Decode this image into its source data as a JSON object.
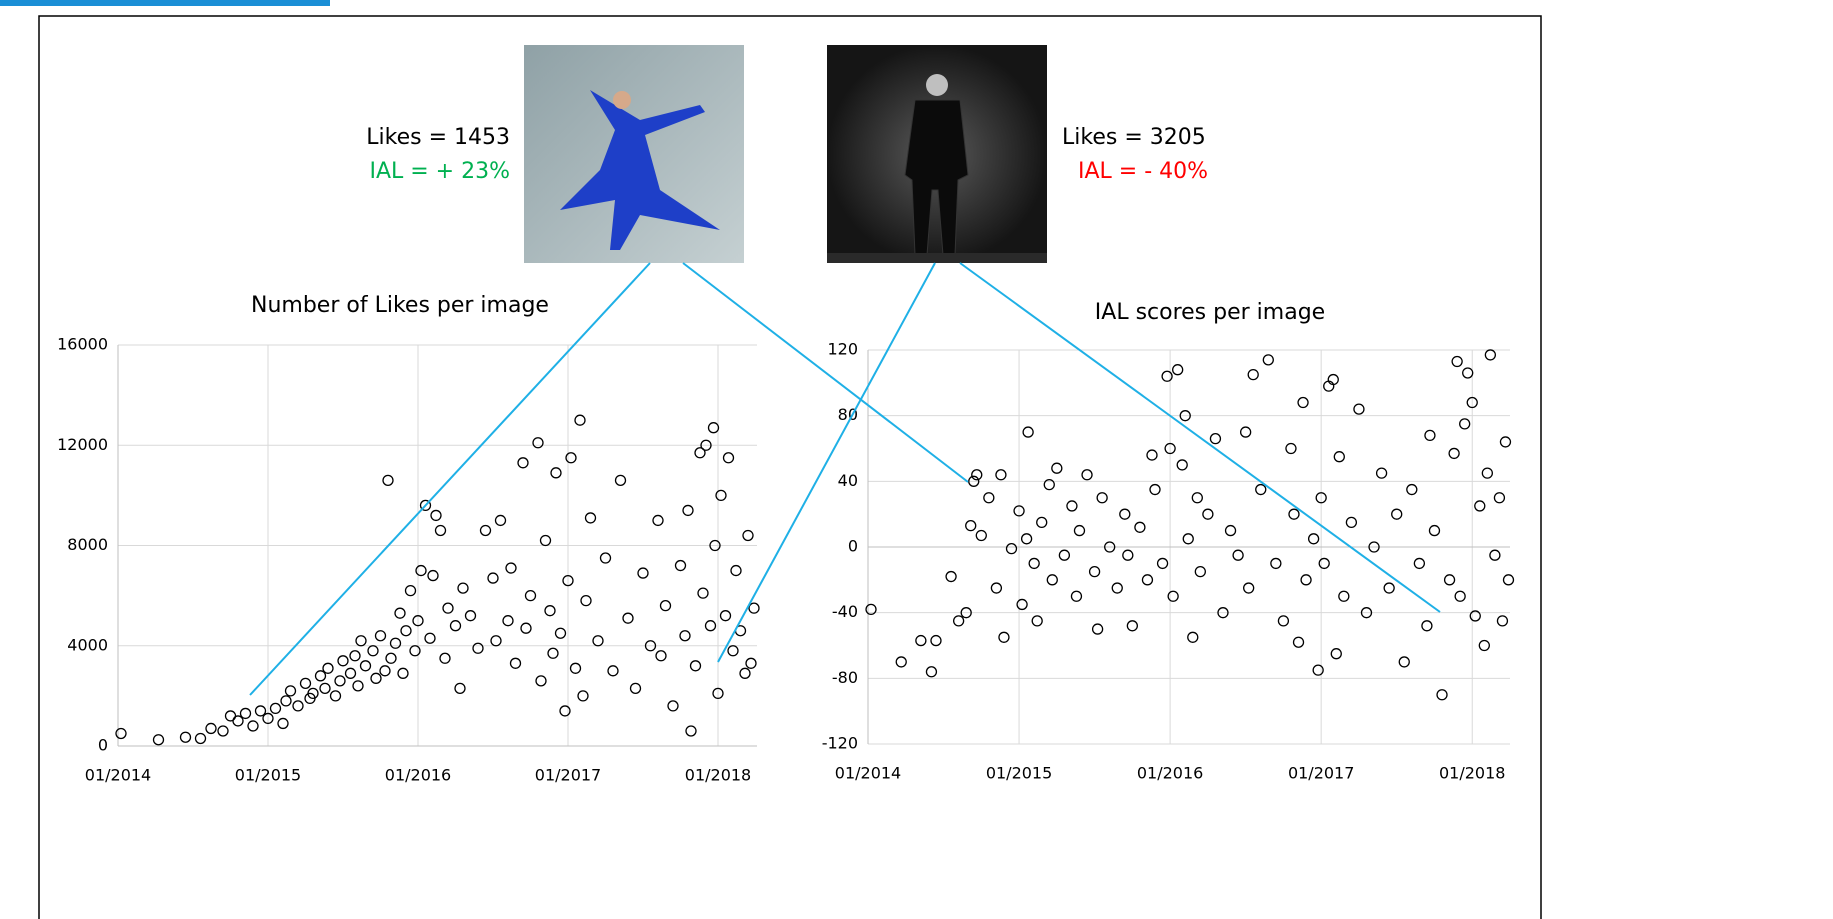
{
  "annotations": [
    "Likes = 1453",
    "IAL = + 23%",
    "Likes = 3205",
    "IAL = - 40%"
  ],
  "chart_data": [
    {
      "type": "scatter",
      "title": "Number of Likes per image",
      "x": [
        2014.02,
        2014.27,
        2014.45,
        2014.55,
        2014.62,
        2014.7,
        2014.75,
        2014.8,
        2014.85,
        2014.9,
        2014.95,
        2015.0,
        2015.05,
        2015.1,
        2015.12,
        2015.15,
        2015.2,
        2015.25,
        2015.28,
        2015.3,
        2015.35,
        2015.38,
        2015.4,
        2015.45,
        2015.48,
        2015.5,
        2015.55,
        2015.58,
        2015.6,
        2015.62,
        2015.65,
        2015.7,
        2015.72,
        2015.75,
        2015.78,
        2015.8,
        2015.82,
        2015.85,
        2015.88,
        2015.9,
        2015.92,
        2015.95,
        2015.98,
        2016.0,
        2016.02,
        2016.05,
        2016.08,
        2016.1,
        2016.12,
        2016.15,
        2016.18,
        2016.2,
        2016.25,
        2016.28,
        2016.3,
        2016.35,
        2016.4,
        2016.45,
        2016.5,
        2016.52,
        2016.55,
        2016.6,
        2016.62,
        2016.65,
        2016.7,
        2016.72,
        2016.75,
        2016.8,
        2016.82,
        2016.85,
        2016.88,
        2016.9,
        2016.92,
        2016.95,
        2016.98,
        2017.0,
        2017.02,
        2017.05,
        2017.08,
        2017.1,
        2017.12,
        2017.15,
        2017.2,
        2017.25,
        2017.3,
        2017.35,
        2017.4,
        2017.45,
        2017.5,
        2017.55,
        2017.6,
        2017.62,
        2017.65,
        2017.7,
        2017.75,
        2017.78,
        2017.8,
        2017.82,
        2017.85,
        2017.88,
        2017.9,
        2017.92,
        2017.95,
        2017.97,
        2017.98,
        2018.0,
        2018.02,
        2018.05,
        2018.07,
        2018.1,
        2018.12,
        2018.15,
        2018.18,
        2018.2,
        2018.22,
        2018.24
      ],
      "values": [
        500,
        250,
        350,
        300,
        700,
        600,
        1200,
        1000,
        1300,
        800,
        1400,
        1100,
        1500,
        900,
        1800,
        2200,
        1600,
        2500,
        1900,
        2100,
        2800,
        2300,
        3100,
        2000,
        2600,
        3400,
        2900,
        3600,
        2400,
        4200,
        3200,
        3800,
        2700,
        4400,
        3000,
        10600,
        3500,
        4100,
        5300,
        2900,
        4600,
        6200,
        3800,
        5000,
        7000,
        9600,
        4300,
        6800,
        9200,
        8600,
        3500,
        5500,
        4800,
        2300,
        6300,
        5200,
        3900,
        8600,
        6700,
        4200,
        9000,
        5000,
        7100,
        3300,
        11300,
        4700,
        6000,
        12100,
        2600,
        8200,
        5400,
        3700,
        10900,
        4500,
        1400,
        6600,
        11500,
        3100,
        13000,
        2000,
        5800,
        9100,
        4200,
        7500,
        3000,
        10600,
        5100,
        2300,
        6900,
        4000,
        9000,
        3600,
        5600,
        1600,
        7200,
        4400,
        9400,
        600,
        3200,
        11700,
        6100,
        12000,
        4800,
        12700,
        8000,
        2100,
        10000,
        5200,
        11500,
        3800,
        7000,
        4600,
        2900,
        8400,
        3300,
        5500
      ],
      "color": "#000000",
      "xlim": [
        2014,
        2018.26
      ],
      "ylim": [
        0,
        16000
      ],
      "xticks": [
        {
          "value": 2014,
          "label": "01/2014"
        },
        {
          "value": 2015,
          "label": "01/2015"
        },
        {
          "value": 2016,
          "label": "01/2016"
        },
        {
          "value": 2017,
          "label": "01/2017"
        },
        {
          "value": 2018,
          "label": "01/2018"
        }
      ],
      "yticks": [
        0,
        4000,
        8000,
        12000,
        16000
      ],
      "grid": true
    },
    {
      "type": "scatter",
      "title": "IAL scores per image",
      "x": [
        2014.02,
        2014.22,
        2014.35,
        2014.42,
        2014.45,
        2014.55,
        2014.6,
        2014.65,
        2014.68,
        2014.7,
        2014.72,
        2014.75,
        2014.8,
        2014.85,
        2014.88,
        2014.9,
        2014.95,
        2015.0,
        2015.02,
        2015.05,
        2015.06,
        2015.1,
        2015.12,
        2015.15,
        2015.2,
        2015.22,
        2015.25,
        2015.3,
        2015.35,
        2015.38,
        2015.4,
        2015.45,
        2015.5,
        2015.52,
        2015.55,
        2015.6,
        2015.65,
        2015.7,
        2015.72,
        2015.75,
        2015.8,
        2015.85,
        2015.88,
        2015.9,
        2015.95,
        2015.98,
        2016.0,
        2016.02,
        2016.05,
        2016.08,
        2016.1,
        2016.12,
        2016.15,
        2016.18,
        2016.2,
        2016.25,
        2016.3,
        2016.35,
        2016.4,
        2016.45,
        2016.5,
        2016.52,
        2016.55,
        2016.6,
        2016.65,
        2016.7,
        2016.75,
        2016.8,
        2016.82,
        2016.85,
        2016.88,
        2016.9,
        2016.95,
        2016.98,
        2017.0,
        2017.02,
        2017.05,
        2017.08,
        2017.1,
        2017.12,
        2017.15,
        2017.2,
        2017.25,
        2017.3,
        2017.35,
        2017.4,
        2017.45,
        2017.5,
        2017.55,
        2017.6,
        2017.65,
        2017.7,
        2017.72,
        2017.75,
        2017.8,
        2017.85,
        2017.88,
        2017.9,
        2017.92,
        2017.95,
        2017.97,
        2018.0,
        2018.02,
        2018.05,
        2018.08,
        2018.1,
        2018.12,
        2018.15,
        2018.18,
        2018.2,
        2018.22,
        2018.24
      ],
      "values": [
        -38,
        -70,
        -57,
        -76,
        -57,
        -18,
        -45,
        -40,
        13,
        40,
        44,
        7,
        30,
        -25,
        44,
        -55,
        -1,
        22,
        -35,
        5,
        70,
        -10,
        -45,
        15,
        38,
        -20,
        48,
        -5,
        25,
        -30,
        10,
        44,
        -15,
        -50,
        30,
        0,
        -25,
        20,
        -5,
        -48,
        12,
        -20,
        56,
        35,
        -10,
        104,
        60,
        -30,
        108,
        50,
        80,
        5,
        -55,
        30,
        -15,
        20,
        66,
        -40,
        10,
        -5,
        70,
        -25,
        105,
        35,
        114,
        -10,
        -45,
        60,
        20,
        -58,
        88,
        -20,
        5,
        -75,
        30,
        -10,
        98,
        102,
        -65,
        55,
        -30,
        15,
        84,
        -40,
        0,
        45,
        -25,
        20,
        -70,
        35,
        -10,
        -48,
        68,
        10,
        -90,
        -20,
        57,
        113,
        -30,
        75,
        106,
        88,
        -42,
        25,
        -60,
        45,
        117,
        -5,
        30,
        -45,
        64,
        -20
      ],
      "color": "#000000",
      "xlim": [
        2014,
        2018.25
      ],
      "ylim": [
        -120,
        120
      ],
      "xticks": [
        {
          "value": 2014,
          "label": "01/2014"
        },
        {
          "value": 2015,
          "label": "01/2015"
        },
        {
          "value": 2016,
          "label": "01/2016"
        },
        {
          "value": 2017,
          "label": "01/2017"
        },
        {
          "value": 2018,
          "label": "01/2018"
        }
      ],
      "yticks": [
        -120,
        -80,
        -40,
        0,
        40,
        80,
        120
      ],
      "grid": true
    }
  ]
}
